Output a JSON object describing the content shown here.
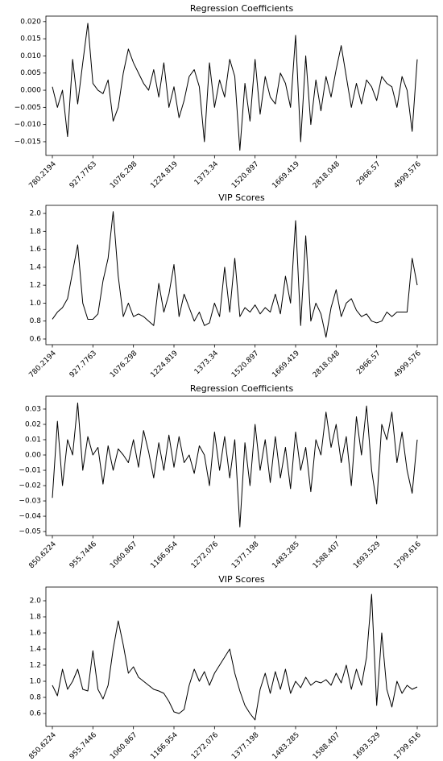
{
  "chart_data": [
    {
      "type": "line",
      "title": "Regression Coefficients",
      "color": "#000000",
      "categories": [
        "780.2194",
        null,
        null,
        null,
        null,
        null,
        null,
        null,
        "927.7763",
        null,
        null,
        null,
        null,
        null,
        null,
        null,
        "1076.298",
        null,
        null,
        null,
        null,
        null,
        null,
        null,
        "1224.819",
        null,
        null,
        null,
        null,
        null,
        null,
        null,
        "1373.34",
        null,
        null,
        null,
        null,
        null,
        null,
        null,
        "1520.897",
        null,
        null,
        null,
        null,
        null,
        null,
        null,
        "1669.419",
        null,
        null,
        null,
        null,
        null,
        null,
        null,
        "2818.048",
        null,
        null,
        null,
        null,
        null,
        null,
        null,
        "2966.57",
        null,
        null,
        null,
        null,
        null,
        null,
        null,
        "4999.576"
      ],
      "values": [
        0.001,
        -0.005,
        0.0,
        -0.0135,
        0.009,
        -0.004,
        0.008,
        0.0195,
        0.002,
        0.0,
        -0.001,
        0.003,
        -0.009,
        -0.005,
        0.005,
        0.012,
        0.008,
        0.005,
        0.002,
        0.0,
        0.006,
        -0.002,
        0.008,
        -0.005,
        0.001,
        -0.008,
        -0.003,
        0.004,
        0.006,
        0.001,
        -0.015,
        0.008,
        -0.005,
        0.003,
        -0.002,
        0.009,
        0.004,
        -0.0175,
        0.002,
        -0.009,
        0.009,
        -0.007,
        0.004,
        -0.002,
        -0.004,
        0.005,
        0.002,
        -0.005,
        0.016,
        -0.015,
        0.01,
        -0.01,
        0.003,
        -0.006,
        0.004,
        -0.002,
        0.006,
        0.013,
        0.004,
        -0.005,
        0.002,
        -0.004,
        0.003,
        0.001,
        -0.003,
        0.004,
        0.002,
        0.001,
        -0.005,
        0.004,
        0.0,
        -0.012,
        0.009
      ],
      "ylim": [
        -0.019,
        0.0216
      ],
      "yticks": [
        {
          "value": -0.015,
          "label": "−0.015"
        },
        {
          "value": -0.01,
          "label": "−0.010"
        },
        {
          "value": -0.005,
          "label": "−0.005"
        },
        {
          "value": 0,
          "label": "0.000"
        },
        {
          "value": 0.005,
          "label": "0.005"
        },
        {
          "value": 0.01,
          "label": "0.010"
        },
        {
          "value": 0.015,
          "label": "0.015"
        },
        {
          "value": 0.02,
          "label": "0.020"
        }
      ]
    },
    {
      "type": "line",
      "title": "VIP Scores",
      "color": "#000000",
      "categories": [
        "780.2194",
        null,
        null,
        null,
        null,
        null,
        null,
        null,
        "927.7763",
        null,
        null,
        null,
        null,
        null,
        null,
        null,
        "1076.298",
        null,
        null,
        null,
        null,
        null,
        null,
        null,
        "1224.819",
        null,
        null,
        null,
        null,
        null,
        null,
        null,
        "1373.34",
        null,
        null,
        null,
        null,
        null,
        null,
        null,
        "1520.897",
        null,
        null,
        null,
        null,
        null,
        null,
        null,
        "1669.419",
        null,
        null,
        null,
        null,
        null,
        null,
        null,
        "2818.048",
        null,
        null,
        null,
        null,
        null,
        null,
        null,
        "2966.57",
        null,
        null,
        null,
        null,
        null,
        null,
        null,
        "4999.576"
      ],
      "values": [
        0.82,
        0.9,
        0.95,
        1.05,
        1.35,
        1.65,
        1.0,
        0.82,
        0.82,
        0.88,
        1.25,
        1.5,
        2.02,
        1.3,
        0.85,
        1.0,
        0.85,
        0.88,
        0.85,
        0.8,
        0.75,
        1.22,
        0.9,
        1.1,
        1.43,
        0.85,
        1.1,
        0.95,
        0.8,
        0.9,
        0.75,
        0.78,
        1.0,
        0.85,
        1.4,
        0.9,
        1.5,
        0.85,
        0.95,
        0.9,
        0.98,
        0.88,
        0.95,
        0.9,
        1.1,
        0.88,
        1.3,
        1.0,
        1.92,
        0.75,
        1.75,
        0.8,
        1.0,
        0.88,
        0.62,
        0.95,
        1.15,
        0.85,
        1.0,
        1.05,
        0.92,
        0.85,
        0.88,
        0.8,
        0.78,
        0.8,
        0.9,
        0.85,
        0.9,
        0.9,
        0.9,
        1.5,
        1.2
      ],
      "ylim": [
        0.537,
        2.09
      ],
      "yticks": [
        0.6,
        0.8,
        {
          "value": 1,
          "label": "1.0"
        },
        1.2,
        1.4,
        1.6,
        1.8,
        {
          "value": 2,
          "label": "2.0"
        }
      ]
    },
    {
      "type": "line",
      "title": "Regression Coefficients",
      "color": "#000000",
      "categories": [
        "850.6224",
        null,
        null,
        null,
        null,
        null,
        null,
        null,
        "955.7446",
        null,
        null,
        null,
        null,
        null,
        null,
        null,
        "1060.867",
        null,
        null,
        null,
        null,
        null,
        null,
        null,
        "1166.954",
        null,
        null,
        null,
        null,
        null,
        null,
        null,
        "1272.076",
        null,
        null,
        null,
        null,
        null,
        null,
        null,
        "1377.198",
        null,
        null,
        null,
        null,
        null,
        null,
        null,
        "1483.285",
        null,
        null,
        null,
        null,
        null,
        null,
        null,
        "1588.407",
        null,
        null,
        null,
        null,
        null,
        null,
        null,
        "1693.529",
        null,
        null,
        null,
        null,
        null,
        null,
        null,
        "1799.616"
      ],
      "values": [
        -0.028,
        0.022,
        -0.02,
        0.01,
        0.0,
        0.034,
        -0.01,
        0.012,
        0.0,
        0.005,
        -0.019,
        0.006,
        -0.01,
        0.004,
        0.0,
        -0.005,
        0.01,
        -0.008,
        0.016,
        0.002,
        -0.015,
        0.008,
        -0.01,
        0.013,
        -0.008,
        0.012,
        -0.005,
        0.0,
        -0.012,
        0.006,
        0.0,
        -0.02,
        0.015,
        -0.01,
        0.012,
        -0.015,
        0.01,
        -0.047,
        0.008,
        -0.02,
        0.02,
        -0.01,
        0.01,
        -0.018,
        0.012,
        -0.015,
        0.005,
        -0.022,
        0.015,
        -0.01,
        0.005,
        -0.024,
        0.01,
        0.0,
        0.028,
        0.005,
        0.02,
        -0.005,
        0.012,
        -0.02,
        0.025,
        0.0,
        0.032,
        -0.01,
        -0.032,
        0.02,
        0.01,
        0.028,
        -0.005,
        0.015,
        -0.01,
        -0.025,
        0.01
      ],
      "ylim": [
        -0.0526,
        0.0384
      ],
      "yticks": [
        {
          "value": -0.05,
          "label": "−0.05"
        },
        {
          "value": -0.04,
          "label": "−0.04"
        },
        {
          "value": -0.03,
          "label": "−0.03"
        },
        {
          "value": -0.02,
          "label": "−0.02"
        },
        {
          "value": -0.01,
          "label": "−0.01"
        },
        {
          "value": 0,
          "label": "0.00"
        },
        0.01,
        0.02,
        0.03
      ]
    },
    {
      "type": "line",
      "title": "VIP Scores",
      "color": "#000000",
      "categories": [
        "850.6224",
        null,
        null,
        null,
        null,
        null,
        null,
        null,
        "955.7446",
        null,
        null,
        null,
        null,
        null,
        null,
        null,
        "1060.867",
        null,
        null,
        null,
        null,
        null,
        null,
        null,
        "1166.954",
        null,
        null,
        null,
        null,
        null,
        null,
        null,
        "1272.076",
        null,
        null,
        null,
        null,
        null,
        null,
        null,
        "1377.198",
        null,
        null,
        null,
        null,
        null,
        null,
        null,
        "1483.285",
        null,
        null,
        null,
        null,
        null,
        null,
        null,
        "1588.407",
        null,
        null,
        null,
        null,
        null,
        null,
        null,
        "1693.529",
        null,
        null,
        null,
        null,
        null,
        null,
        null,
        "1799.616"
      ],
      "values": [
        0.95,
        0.82,
        1.15,
        0.9,
        1.0,
        1.15,
        0.9,
        0.88,
        1.38,
        0.9,
        0.78,
        0.95,
        1.4,
        1.75,
        1.45,
        1.1,
        1.18,
        1.05,
        1.0,
        0.95,
        0.9,
        0.88,
        0.85,
        0.75,
        0.62,
        0.6,
        0.65,
        0.95,
        1.15,
        1.0,
        1.12,
        0.95,
        1.1,
        1.2,
        1.3,
        1.4,
        1.1,
        0.88,
        0.7,
        0.6,
        0.52,
        0.9,
        1.1,
        0.85,
        1.12,
        0.9,
        1.15,
        0.85,
        1.0,
        0.92,
        1.05,
        0.95,
        1.0,
        0.98,
        1.02,
        0.95,
        1.1,
        0.98,
        1.2,
        0.9,
        1.15,
        0.95,
        1.3,
        2.08,
        0.7,
        1.6,
        0.9,
        0.68,
        1.0,
        0.85,
        0.95,
        0.9,
        0.93
      ],
      "ylim": [
        0.44,
        2.17
      ],
      "yticks": [
        0.6,
        0.8,
        {
          "value": 1,
          "label": "1.0"
        },
        1.2,
        1.4,
        1.6,
        1.8,
        {
          "value": 2,
          "label": "2.0"
        }
      ]
    }
  ]
}
